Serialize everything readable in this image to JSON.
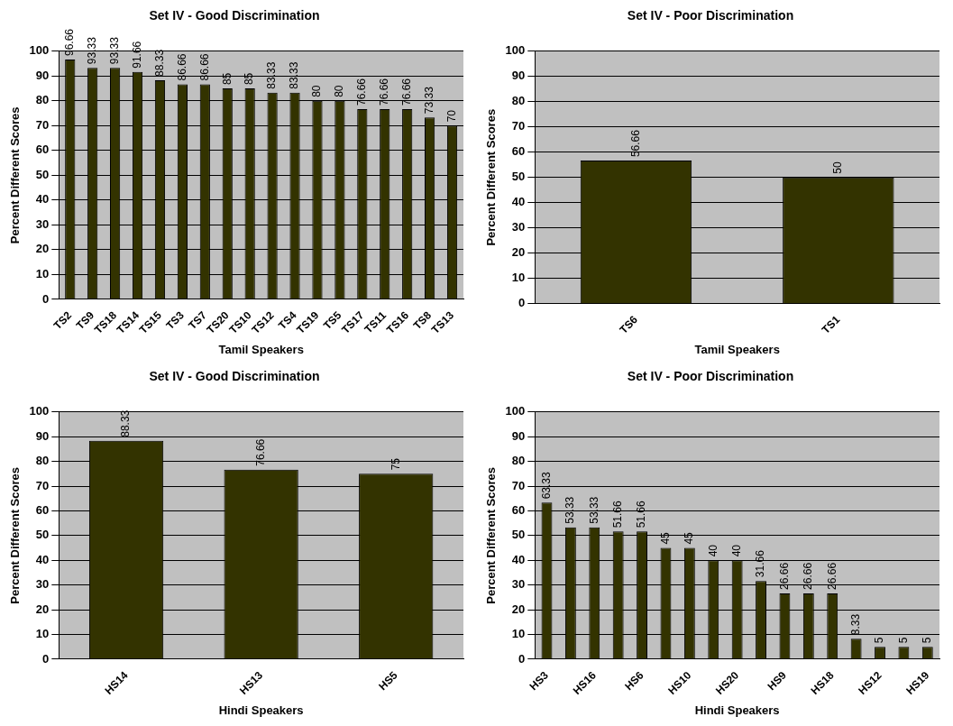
{
  "chart_data": [
    {
      "type": "bar",
      "title": "Set IV - Good Discrimination",
      "xlabel": "Tamil Speakers",
      "ylabel": "Percent Different Scores",
      "categories": [
        "TS2",
        "TS9",
        "TS18",
        "TS14",
        "TS15",
        "TS3",
        "TS7",
        "TS20",
        "TS10",
        "TS12",
        "TS4",
        "TS19",
        "TS5",
        "TS17",
        "TS11",
        "TS16",
        "TS8",
        "TS13"
      ],
      "values": [
        96.66,
        93.33,
        93.33,
        91.66,
        88.33,
        86.66,
        86.66,
        85,
        85,
        83.33,
        83.33,
        80,
        80,
        76.66,
        76.66,
        76.66,
        73.33,
        70
      ],
      "color": "#333300",
      "ylim": [
        0,
        100
      ],
      "yticks": [
        0,
        10,
        20,
        30,
        40,
        50,
        60,
        70,
        80,
        90,
        100
      ],
      "grid": "y",
      "data_labels": true,
      "legend": false
    },
    {
      "type": "bar",
      "title": "Set IV - Poor Discrimination",
      "xlabel": "Tamil Speakers",
      "ylabel": "Percent Different Scores",
      "categories": [
        "TS6",
        "TS1"
      ],
      "values": [
        56.66,
        50
      ],
      "color": "#333300",
      "ylim": [
        0,
        100
      ],
      "yticks": [
        0,
        10,
        20,
        30,
        40,
        50,
        60,
        70,
        80,
        90,
        100
      ],
      "grid": "y",
      "data_labels": true,
      "legend": false
    },
    {
      "type": "bar",
      "title": "Set IV - Good Discrimination",
      "xlabel": "Hindi Speakers",
      "ylabel": "Percent Different Scores",
      "categories": [
        "HS14",
        "HS13",
        "HS5"
      ],
      "values": [
        88.33,
        76.66,
        75
      ],
      "color": "#333300",
      "ylim": [
        0,
        100
      ],
      "yticks": [
        0,
        10,
        20,
        30,
        40,
        50,
        60,
        70,
        80,
        90,
        100
      ],
      "grid": "y",
      "data_labels": true,
      "legend": false
    },
    {
      "type": "bar",
      "title": "Set IV - Poor Discrimination",
      "xlabel": "Hindi Speakers",
      "ylabel": "Percent Different Scores",
      "categories": [
        "HS3",
        null,
        "HS16",
        null,
        "HS6",
        null,
        "HS10",
        null,
        "HS20",
        null,
        "HS9",
        null,
        "HS18",
        null,
        "HS12",
        null,
        "HS19"
      ],
      "values": [
        63.33,
        53.33,
        53.33,
        51.66,
        51.66,
        45,
        45,
        40,
        40,
        31.66,
        26.66,
        26.66,
        26.66,
        8.33,
        5,
        5,
        5
      ],
      "color": "#333300",
      "ylim": [
        0,
        100
      ],
      "yticks": [
        0,
        10,
        20,
        30,
        40,
        50,
        60,
        70,
        80,
        90,
        100
      ],
      "grid": "y",
      "data_labels": true,
      "legend": false
    }
  ]
}
